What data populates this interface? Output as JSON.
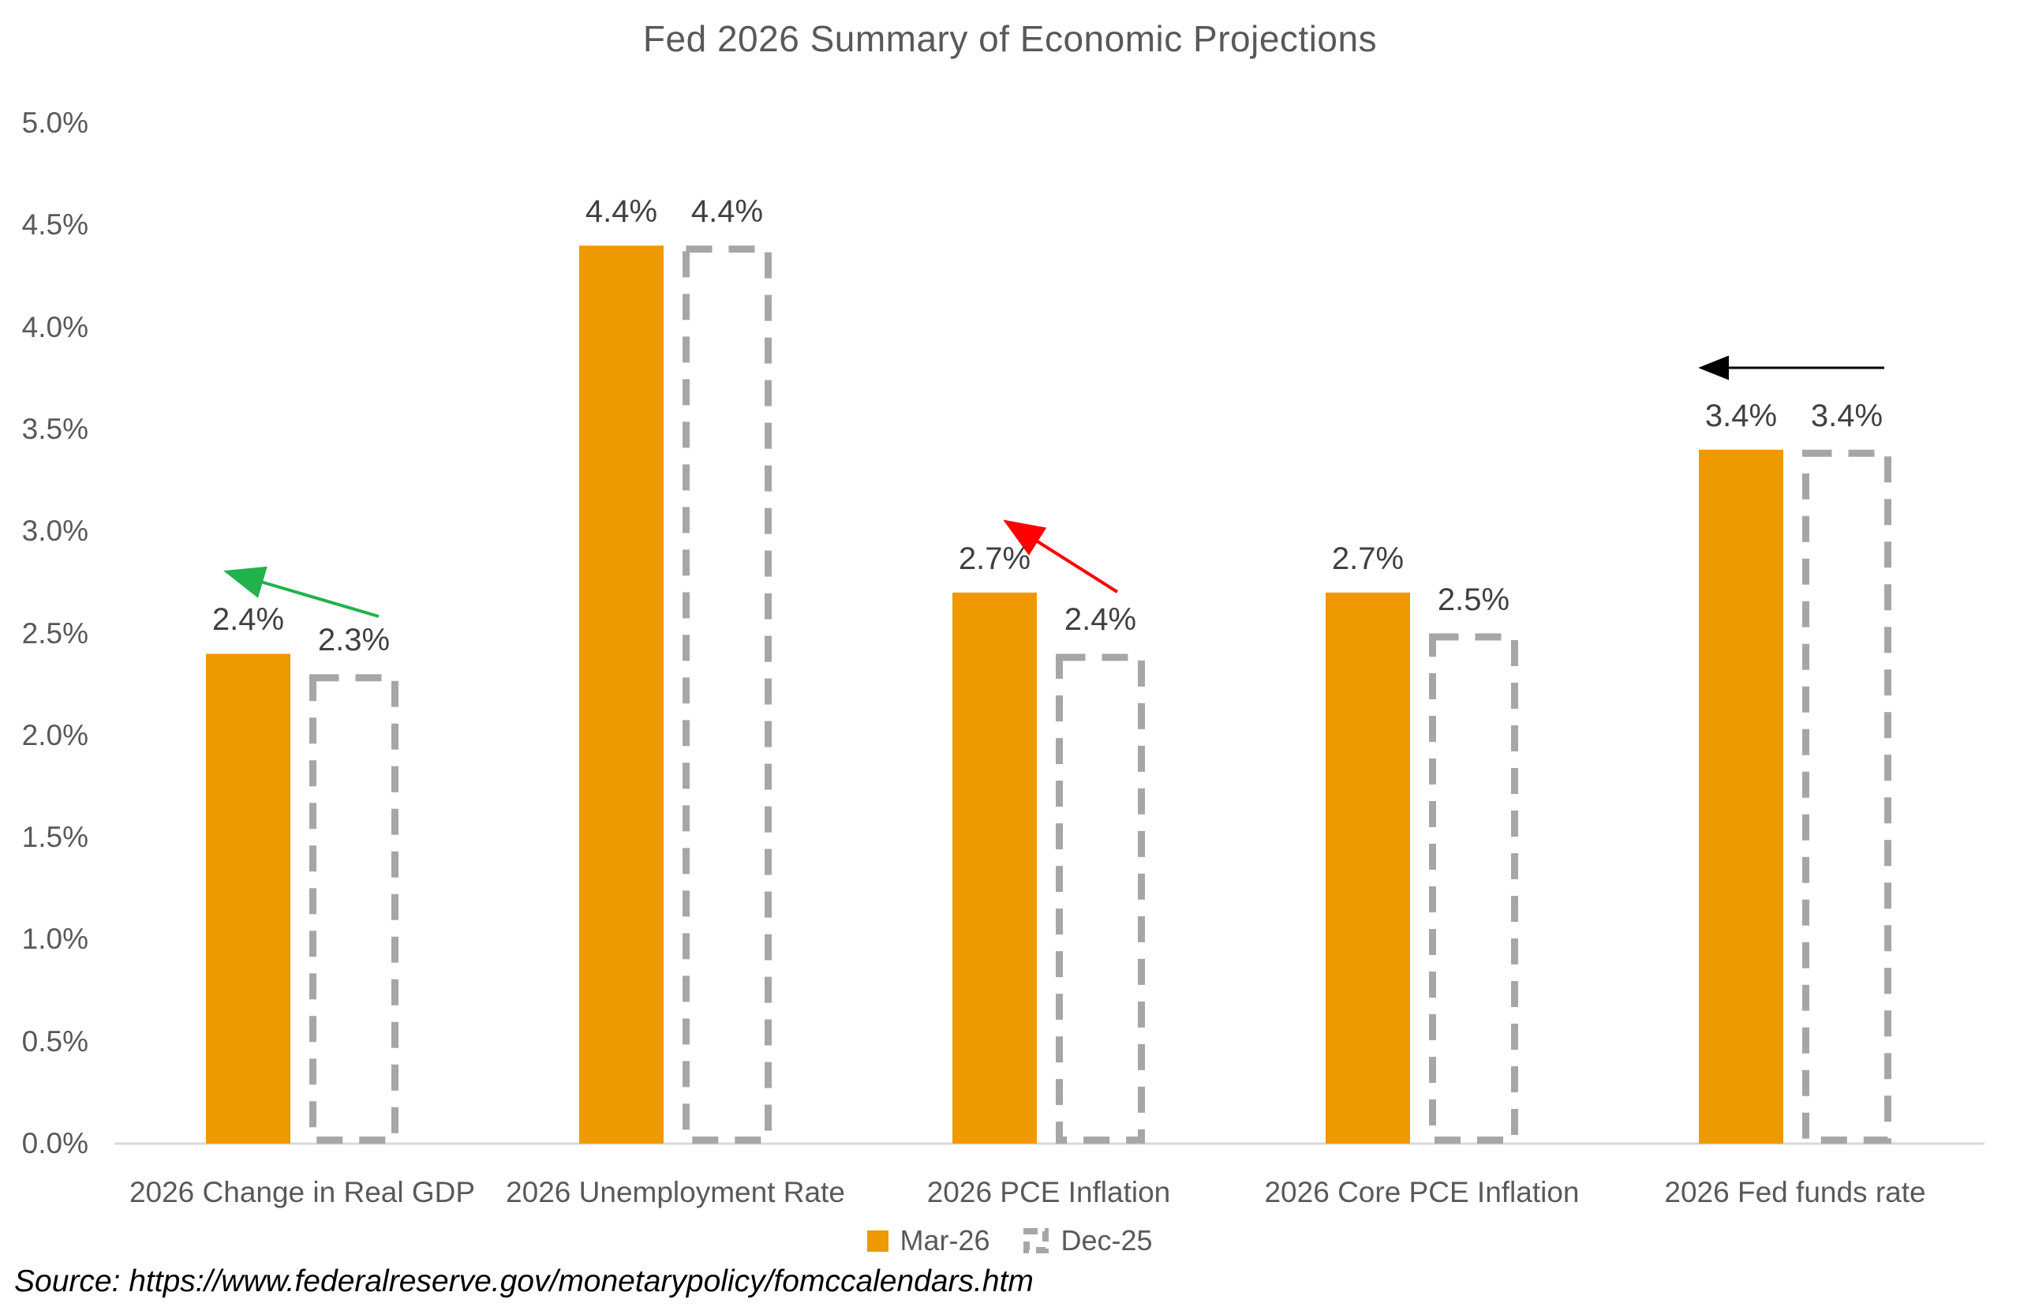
{
  "title": "Fed 2026 Summary of Economic Projections",
  "source_note": "Source:  https://www.federalreserve.gov/monetarypolicy/fomccalendars.htm",
  "colors": {
    "mar_bar": "#EF9900",
    "dec_outline": "#A6A6A6",
    "axis_line": "#D9D9D9",
    "title_text": "#595959",
    "axis_text": "#595959",
    "value_text": "#404040",
    "arrow_green": "#21B24C",
    "arrow_red": "#FE0000",
    "arrow_black": "#000000"
  },
  "legend": {
    "items": [
      {
        "label": "Mar-26",
        "swatch": "solid-orange"
      },
      {
        "label": "Dec-25",
        "swatch": "dashed-gray"
      }
    ]
  },
  "chart_data": {
    "type": "bar",
    "title": "Fed 2026 Summary of Economic Projections",
    "xlabel": "",
    "ylabel": "",
    "ylim": [
      0.0,
      5.0
    ],
    "grid": false,
    "legend_position": "bottom",
    "categories": [
      "2026 Change in Real GDP",
      "2026 Unemployment Rate",
      "2026 PCE Inflation",
      "2026 Core PCE Inflation",
      "2026 Fed funds rate"
    ],
    "series": [
      {
        "name": "Mar-26",
        "style": "solid",
        "color": "#EF9900",
        "values": [
          2.4,
          4.4,
          2.7,
          2.7,
          3.4
        ],
        "labels": [
          "2.4%",
          "4.4%",
          "2.7%",
          "2.7%",
          "3.4%"
        ]
      },
      {
        "name": "Dec-25",
        "style": "dashed-outline",
        "color": "#A6A6A6",
        "values": [
          2.3,
          4.4,
          2.4,
          2.5,
          3.4
        ],
        "labels": [
          "2.3%",
          "4.4%",
          "2.4%",
          "2.5%",
          "3.4%"
        ]
      }
    ],
    "y_ticks": [
      {
        "value": 5.0,
        "label": "5.0%"
      },
      {
        "value": 4.5,
        "label": "4.5%"
      },
      {
        "value": 4.0,
        "label": "4.0%"
      },
      {
        "value": 3.5,
        "label": "3.5%"
      },
      {
        "value": 3.0,
        "label": "3.0%"
      },
      {
        "value": 2.5,
        "label": "2.5%"
      },
      {
        "value": 2.0,
        "label": "2.0%"
      },
      {
        "value": 1.5,
        "label": "1.5%"
      },
      {
        "value": 1.0,
        "label": "1.0%"
      },
      {
        "value": 0.5,
        "label": "0.5%"
      },
      {
        "value": 0.0,
        "label": "0.0%"
      }
    ],
    "annotations": [
      {
        "type": "arrow",
        "category_index": 0,
        "direction": "up-left",
        "color_name": "green",
        "color": "#21B24C"
      },
      {
        "type": "arrow",
        "category_index": 2,
        "direction": "up-left",
        "color_name": "red",
        "color": "#FE0000"
      },
      {
        "type": "arrow",
        "category_index": 4,
        "direction": "left",
        "color_name": "black",
        "color": "#000000"
      }
    ]
  }
}
